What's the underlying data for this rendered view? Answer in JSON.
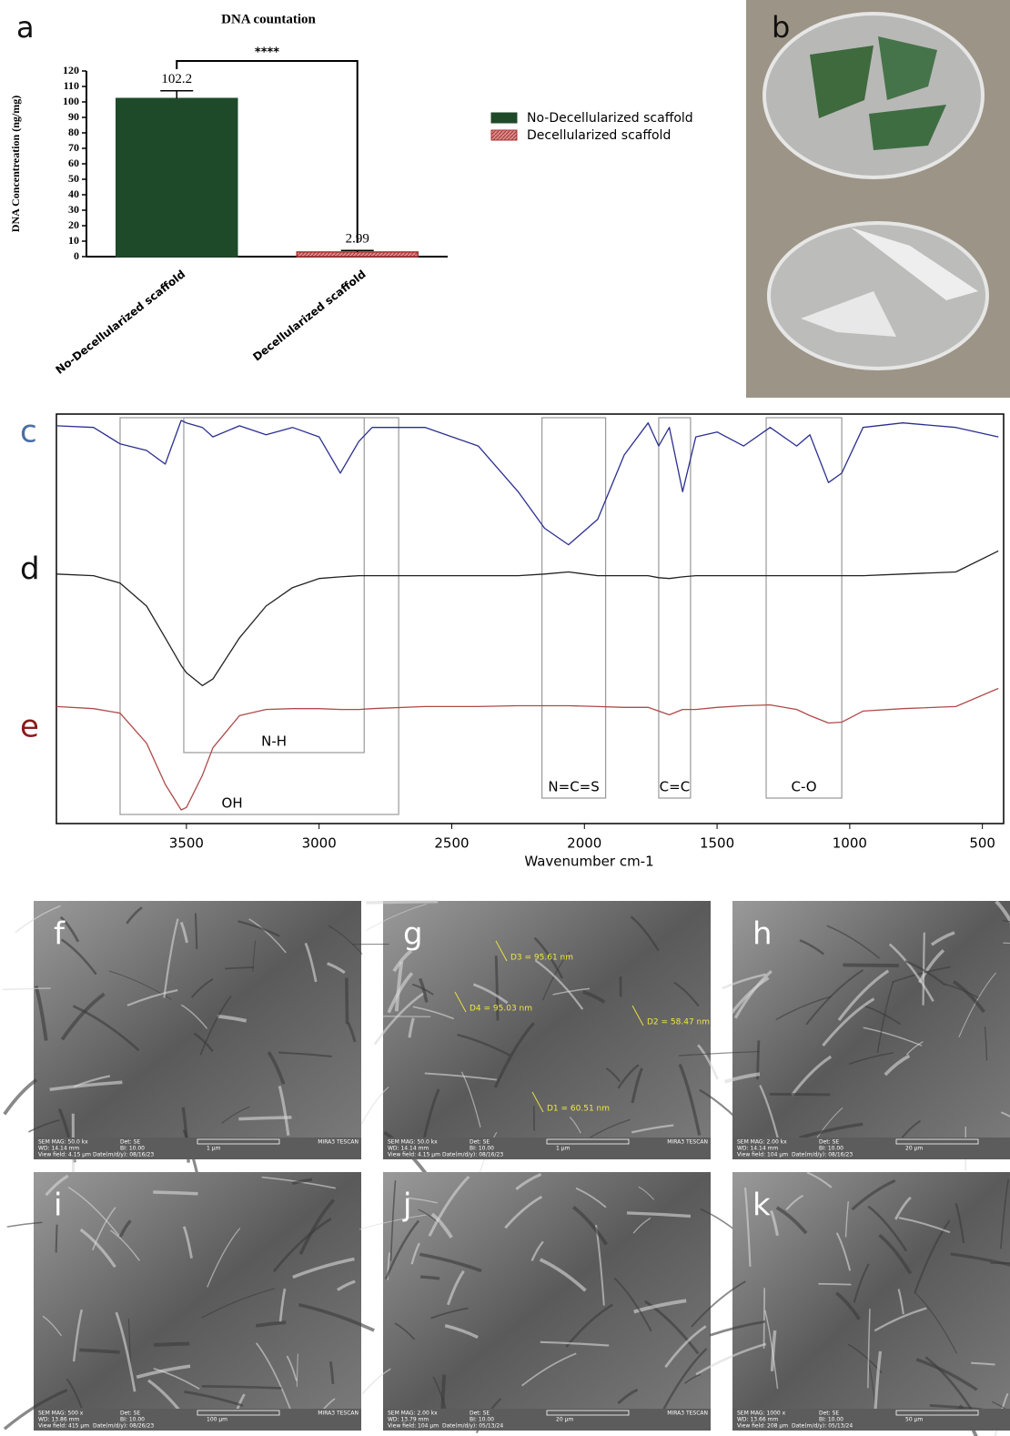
{
  "chart_data": [
    {
      "type": "bar",
      "label": "a",
      "title": "DNA countation",
      "ylabel": "DNA Concentreation (ng/mg)",
      "categories": [
        "No-Decellularized scaffold",
        "Decellularized scaffold"
      ],
      "values": [
        102.2,
        2.99
      ],
      "errors": [
        5,
        1
      ],
      "colors": [
        "#1f4a2a",
        "#a83232"
      ],
      "significance": "****",
      "ylim": [
        0,
        120
      ],
      "yticks": [
        0,
        10,
        20,
        30,
        40,
        50,
        60,
        70,
        80,
        90,
        100,
        110,
        120
      ]
    },
    {
      "type": "line",
      "xlabel": "Wavenumber cm-1",
      "x": [
        3990,
        3850,
        3750,
        3650,
        3580,
        3520,
        3500,
        3440,
        3400,
        3300,
        3200,
        3100,
        3000,
        2920,
        2850,
        2800,
        2600,
        2400,
        2250,
        2150,
        2060,
        1950,
        1850,
        1760,
        1720,
        1680,
        1630,
        1580,
        1500,
        1400,
        1300,
        1200,
        1150,
        1080,
        1030,
        950,
        800,
        600,
        440
      ],
      "series": [
        {
          "name": "c",
          "color": "#2b2f8f",
          "label_color": "#4a6fa5",
          "values": [
            97.1,
            96.7,
            92.7,
            91.1,
            87.8,
            98.4,
            97.8,
            96.7,
            94.4,
            97.1,
            94.9,
            96.7,
            94.4,
            85.6,
            93.3,
            96.7,
            96.7,
            92.2,
            81.1,
            72.2,
            68.2,
            74.4,
            90.0,
            97.8,
            92.2,
            96.7,
            81.1,
            94.4,
            95.6,
            92.2,
            96.7,
            92.2,
            94.9,
            83.3,
            85.6,
            96.7,
            97.8,
            96.7,
            94.4
          ]
        },
        {
          "name": "d",
          "color": "#222222",
          "label_color": "#111111",
          "values": [
            61.1,
            60.7,
            58.9,
            53.3,
            45.6,
            38.9,
            37.1,
            34.0,
            35.6,
            45.6,
            53.3,
            57.8,
            60.0,
            60.4,
            60.7,
            60.7,
            60.7,
            60.7,
            60.7,
            61.1,
            61.6,
            60.7,
            60.7,
            60.7,
            60.2,
            60.0,
            60.4,
            60.7,
            60.7,
            60.7,
            60.7,
            60.7,
            60.7,
            60.7,
            60.7,
            60.7,
            61.1,
            61.6,
            66.7
          ]
        },
        {
          "name": "e",
          "color": "#b04a4a",
          "label_color": "#8b1a1a",
          "values": [
            28.9,
            28.4,
            27.3,
            20.0,
            10.0,
            3.8,
            4.4,
            12.2,
            18.9,
            26.7,
            28.2,
            28.4,
            28.4,
            28.2,
            28.2,
            28.4,
            28.9,
            28.9,
            29.1,
            29.1,
            29.1,
            28.9,
            28.7,
            28.7,
            27.8,
            26.9,
            28.2,
            28.2,
            28.7,
            29.1,
            29.3,
            28.2,
            26.7,
            24.9,
            25.1,
            27.8,
            28.4,
            28.9,
            33.3
          ]
        }
      ],
      "annotations": [
        {
          "text": "OH",
          "x": [
            3750,
            2700
          ]
        },
        {
          "text": "N-H",
          "x": [
            3510,
            2830
          ]
        },
        {
          "text": "N=C=S",
          "x": [
            2160,
            1920
          ]
        },
        {
          "text": "C=C",
          "x": [
            1720,
            1600
          ]
        },
        {
          "text": "C-O",
          "x": [
            1315,
            1030
          ]
        }
      ],
      "xlim": [
        3990,
        420
      ],
      "xticks": [
        3500,
        3000,
        2500,
        2000,
        1500,
        1000,
        500
      ]
    }
  ],
  "photo": {
    "label": "b"
  },
  "sem_images": [
    {
      "label": "f",
      "measurements": [],
      "footer": [
        "SEM MAG: 50.0 kx",
        "Det: SE",
        "WD: 14.14 mm",
        "BI: 10.00",
        "1 μm",
        "View field: 4.15 μm",
        "Date(m/d/y): 08/16/23",
        "MIRA3 TESCAN"
      ]
    },
    {
      "label": "g",
      "measurements": [
        "D3 = 95.61 nm",
        "D4 = 95.03 nm",
        "D2 = 58.47 nm",
        "D1 = 60.51 nm"
      ],
      "footer": [
        "SEM MAG: 50.0 kx",
        "Det: SE",
        "WD: 14.14 mm",
        "BI: 10.00",
        "1 μm",
        "View field: 4.15 μm",
        "Date(m/d/y): 08/16/23",
        "MIRA3 TESCAN"
      ]
    },
    {
      "label": "h",
      "measurements": [],
      "footer": [
        "SEM MAG: 2.00 kx",
        "Det: SE",
        "WD: 14.14 mm",
        "BI: 10.00",
        "20 μm",
        "View field: 104 μm",
        "Date(m/d/y): 08/16/23"
      ]
    },
    {
      "label": "i",
      "measurements": [],
      "footer": [
        "SEM MAG: 500 x",
        "Det: SE",
        "WD: 13.86 mm",
        "BI: 10.00",
        "100 μm",
        "View field: 415 μm",
        "Date(m/d/y): 08/26/23",
        "MIRA3 TESCAN"
      ]
    },
    {
      "label": "j",
      "measurements": [],
      "footer": [
        "SEM MAG: 2.00 kx",
        "Det: SE",
        "WD: 13.79 mm",
        "BI: 10.00",
        "20 μm",
        "View field: 104 μm",
        "Date(m/d/y): 05/13/24",
        "MIRA3 TESCAN"
      ]
    },
    {
      "label": "k",
      "measurements": [],
      "footer": [
        "SEM MAG: 1000 x",
        "Det: SE",
        "WD: 13.66 mm",
        "BI: 10.00",
        "50 μm",
        "View field: 208 μm",
        "Date(m/d/y): 05/13/24"
      ]
    }
  ]
}
